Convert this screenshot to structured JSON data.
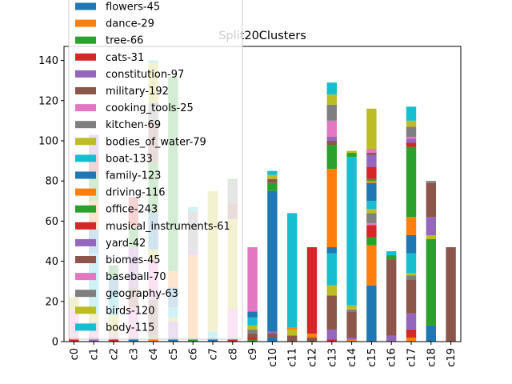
{
  "chart_data": {
    "type": "bar",
    "stacked": true,
    "title": "Split20Clusters",
    "xlabel": "",
    "ylabel": "",
    "ylim": [
      0,
      147
    ],
    "yticks": [
      0,
      20,
      40,
      60,
      80,
      100,
      120,
      140
    ],
    "grid": false,
    "legend_position": "top-left",
    "categories": [
      "c0",
      "c1",
      "c2",
      "c3",
      "c4",
      "c5",
      "c6",
      "c7",
      "c8",
      "c9",
      "c10",
      "c11",
      "c12",
      "c13",
      "c14",
      "c15",
      "c16",
      "c17",
      "c18",
      "c19"
    ],
    "series": [
      {
        "name": "flowers-45",
        "color": "#1f77b4",
        "values": [
          0,
          0,
          0,
          2,
          0,
          2,
          0,
          2,
          0,
          0,
          2,
          0,
          0,
          0,
          0,
          28,
          0,
          0,
          8,
          0
        ]
      },
      {
        "name": "dance-29",
        "color": "#ff7f0e",
        "values": [
          0,
          0,
          0,
          0,
          2,
          0,
          41,
          0,
          0,
          0,
          0,
          0,
          2,
          0,
          1,
          20,
          0,
          2,
          0,
          0
        ]
      },
      {
        "name": "tree-66",
        "color": "#2ca02c",
        "values": [
          0,
          0,
          0,
          0,
          1,
          0,
          1,
          0,
          0,
          2,
          0,
          0,
          0,
          0,
          0,
          4,
          0,
          0,
          43,
          0
        ]
      },
      {
        "name": "cats-31",
        "color": "#d62728",
        "values": [
          2,
          0,
          1,
          0,
          0,
          0,
          0,
          0,
          1,
          1,
          0,
          0,
          0,
          1,
          0,
          6,
          0,
          4,
          0,
          0
        ]
      },
      {
        "name": "constitution-97",
        "color": "#9467bd",
        "values": [
          0,
          1,
          0,
          0,
          0,
          8,
          1,
          0,
          0,
          0,
          0,
          0,
          0,
          5,
          1,
          0,
          3,
          8,
          0,
          0
        ]
      },
      {
        "name": "military-192",
        "color": "#8c564b",
        "values": [
          0,
          0,
          0,
          0,
          18,
          0,
          0,
          0,
          0,
          2,
          2,
          3,
          2,
          17,
          13,
          0,
          38,
          17,
          0,
          47
        ]
      },
      {
        "name": "cooking_tools-25",
        "color": "#e377c2",
        "values": [
          14,
          0,
          0,
          15,
          20,
          0,
          0,
          0,
          0,
          0,
          0,
          0,
          0,
          0,
          0,
          1,
          0,
          0,
          0,
          0
        ]
      },
      {
        "name": "kitchen-69",
        "color": "#7f7f7f",
        "values": [
          0,
          0,
          0,
          0,
          0,
          0,
          0,
          0,
          0,
          2,
          0,
          0,
          0,
          0,
          0,
          0,
          0,
          1,
          0,
          0
        ]
      },
      {
        "name": "bodies_of_water-79",
        "color": "#bcbd22",
        "values": [
          0,
          0,
          0,
          0,
          0,
          0,
          0,
          0,
          0,
          0,
          0,
          0,
          0,
          0,
          0,
          0,
          0,
          1,
          1,
          0
        ]
      },
      {
        "name": "boat-133",
        "color": "#17becf",
        "values": [
          0,
          0,
          0,
          0,
          0,
          0,
          0,
          0,
          0,
          0,
          0,
          3,
          0,
          0,
          0,
          0,
          0,
          0,
          0,
          0
        ]
      },
      {
        "name": "family-123",
        "color": "#1f77b4",
        "values": [
          0,
          0,
          0,
          0,
          0,
          0,
          0,
          0,
          0,
          0,
          70,
          0,
          0,
          0,
          0,
          0,
          0,
          0,
          0,
          0
        ]
      },
      {
        "name": "driving-116",
        "color": "#ff7f0e",
        "values": [
          0,
          0,
          0,
          0,
          0,
          0,
          0,
          0,
          0,
          0,
          0,
          0,
          0,
          0,
          0,
          0,
          0,
          0,
          0,
          0
        ]
      },
      {
        "name": "office-243",
        "color": "#2ca02c",
        "values": [
          0,
          0,
          0,
          0,
          0,
          0,
          0,
          0,
          0,
          0,
          0,
          0,
          0,
          0,
          0,
          0,
          0,
          0,
          0,
          0
        ]
      },
      {
        "name": "musical_instruments-61",
        "color": "#d62728",
        "values": [
          0,
          0,
          0,
          0,
          0,
          0,
          0,
          0,
          0,
          0,
          0,
          0,
          43,
          0,
          0,
          0,
          0,
          0,
          0,
          0
        ]
      },
      {
        "name": "yard-42",
        "color": "#9467bd",
        "values": [
          0,
          0,
          0,
          0,
          0,
          0,
          0,
          0,
          0,
          0,
          0,
          0,
          0,
          0,
          0,
          0,
          0,
          0,
          0,
          0
        ]
      },
      {
        "name": "biomes-45",
        "color": "#8c564b",
        "values": [
          0,
          0,
          0,
          0,
          0,
          0,
          0,
          0,
          0,
          0,
          0,
          0,
          0,
          0,
          0,
          0,
          0,
          0,
          0,
          0
        ]
      },
      {
        "name": "baseball-70",
        "color": "#e377c2",
        "values": [
          0,
          0,
          0,
          0,
          0,
          0,
          0,
          0,
          0,
          32,
          0,
          0,
          0,
          0,
          0,
          0,
          0,
          0,
          0,
          0
        ]
      },
      {
        "name": "geography-63",
        "color": "#7f7f7f",
        "values": [
          0,
          0,
          0,
          0,
          0,
          0,
          0,
          0,
          0,
          0,
          0,
          0,
          0,
          0,
          0,
          0,
          0,
          0,
          0,
          0
        ]
      },
      {
        "name": "birds-120",
        "color": "#bcbd22",
        "values": [
          0,
          0,
          0,
          0,
          0,
          0,
          0,
          0,
          0,
          0,
          0,
          0,
          0,
          0,
          0,
          0,
          0,
          0,
          0,
          0
        ]
      },
      {
        "name": "body-115",
        "color": "#17becf",
        "values": [
          0,
          0,
          0,
          0,
          0,
          0,
          0,
          0,
          0,
          0,
          0,
          0,
          0,
          0,
          0,
          0,
          0,
          0,
          0,
          0
        ]
      }
    ],
    "bars": [
      [
        [
          2,
          "#d62728"
        ],
        [
          14,
          "#e377c2"
        ],
        [
          6,
          "#bcbd22"
        ]
      ],
      [
        [
          1,
          "#9467bd"
        ],
        [
          1,
          "#8c564b"
        ],
        [
          3,
          "#e377c2"
        ],
        [
          5,
          "#7f7f7f"
        ],
        [
          4,
          "#bcbd22"
        ],
        [
          30,
          "#17becf"
        ],
        [
          12,
          "#1f77b4"
        ],
        [
          14,
          "#ff7f0e"
        ],
        [
          14,
          "#2ca02c"
        ],
        [
          9,
          "#d62728"
        ],
        [
          10,
          "#9467bd"
        ]
      ],
      [
        [
          1,
          "#d62728"
        ],
        [
          1,
          "#ff7f0e"
        ],
        [
          2,
          "#e377c2"
        ],
        [
          9,
          "#bcbd22"
        ],
        [
          11,
          "#17becf"
        ],
        [
          8,
          "#1f77b4"
        ],
        [
          6,
          "#2ca02c"
        ]
      ],
      [
        [
          2,
          "#1f77b4"
        ],
        [
          15,
          "#e377c2"
        ],
        [
          10,
          "#8c564b"
        ],
        [
          20,
          "#9467bd"
        ],
        [
          10,
          "#2ca02c"
        ],
        [
          15,
          "#d62728"
        ]
      ],
      [
        [
          2,
          "#ff7f0e"
        ],
        [
          1,
          "#2ca02c"
        ],
        [
          18,
          "#8c564b"
        ],
        [
          20,
          "#e377c2"
        ],
        [
          5,
          "#bcbd22"
        ],
        [
          18,
          "#1f77b4"
        ],
        [
          25,
          "#2ca02c"
        ],
        [
          20,
          "#8c564b"
        ],
        [
          10,
          "#7f7f7f"
        ],
        [
          20,
          "#bcbd22"
        ],
        [
          1,
          "#17becf"
        ]
      ],
      [
        [
          2,
          "#1f77b4"
        ],
        [
          8,
          "#9467bd"
        ],
        [
          2,
          "#bcbd22"
        ],
        [
          5,
          "#17becf"
        ],
        [
          10,
          "#1f77b4"
        ],
        [
          8,
          "#ff7f0e"
        ],
        [
          97,
          "#2ca02c"
        ]
      ],
      [
        [
          1,
          "#2ca02c"
        ],
        [
          1,
          "#9467bd"
        ],
        [
          41,
          "#ff7f0e"
        ],
        [
          3,
          "#9467bd"
        ],
        [
          19,
          "#7f7f7f"
        ],
        [
          2,
          "#17becf"
        ]
      ],
      [
        [
          2,
          "#1f77b4"
        ],
        [
          3,
          "#17becf"
        ],
        [
          70,
          "#bcbd22"
        ]
      ],
      [
        [
          1,
          "#d62728"
        ],
        [
          1,
          "#17becf"
        ],
        [
          14,
          "#e377c2"
        ],
        [
          45,
          "#bcbd22"
        ],
        [
          8,
          "#8c564b"
        ],
        [
          11,
          "#7f7f7f"
        ],
        [
          1,
          "#2ca02c"
        ]
      ],
      [
        [
          1,
          "#2ca02c"
        ],
        [
          1,
          "#d62728"
        ],
        [
          2,
          "#8c564b"
        ],
        [
          2,
          "#7f7f7f"
        ],
        [
          2,
          "#bcbd22"
        ],
        [
          4,
          "#17becf"
        ],
        [
          3,
          "#1f77b4"
        ],
        [
          32,
          "#e377c2"
        ]
      ],
      [
        [
          2,
          "#1f77b4"
        ],
        [
          2,
          "#8c564b"
        ],
        [
          1,
          "#9467bd"
        ],
        [
          70,
          "#1f77b4"
        ],
        [
          4,
          "#2ca02c"
        ],
        [
          2,
          "#8c564b"
        ],
        [
          2,
          "#bcbd22"
        ],
        [
          2,
          "#17becf"
        ]
      ],
      [
        [
          3,
          "#8c564b"
        ],
        [
          3,
          "#bcbd22"
        ],
        [
          1,
          "#ff7f0e"
        ],
        [
          57,
          "#17becf"
        ]
      ],
      [
        [
          2,
          "#8c564b"
        ],
        [
          2,
          "#ff7f0e"
        ],
        [
          43,
          "#d62728"
        ]
      ],
      [
        [
          1,
          "#d62728"
        ],
        [
          5,
          "#9467bd"
        ],
        [
          17,
          "#8c564b"
        ],
        [
          5,
          "#bcbd22"
        ],
        [
          16,
          "#17becf"
        ],
        [
          3,
          "#1f77b4"
        ],
        [
          39,
          "#ff7f0e"
        ],
        [
          12,
          "#2ca02c"
        ],
        [
          2,
          "#8c564b"
        ],
        [
          2,
          "#9467bd"
        ],
        [
          8,
          "#e377c2"
        ],
        [
          8,
          "#7f7f7f"
        ],
        [
          5,
          "#bcbd22"
        ],
        [
          6,
          "#17becf"
        ]
      ],
      [
        [
          1,
          "#ff7f0e"
        ],
        [
          1,
          "#9467bd"
        ],
        [
          13,
          "#8c564b"
        ],
        [
          1,
          "#7f7f7f"
        ],
        [
          2,
          "#bcbd22"
        ],
        [
          74,
          "#17becf"
        ],
        [
          2,
          "#2ca02c"
        ],
        [
          1,
          "#bcbd22"
        ]
      ],
      [
        [
          28,
          "#1f77b4"
        ],
        [
          20,
          "#ff7f0e"
        ],
        [
          4,
          "#2ca02c"
        ],
        [
          6,
          "#d62728"
        ],
        [
          1,
          "#e377c2"
        ],
        [
          5,
          "#7f7f7f"
        ],
        [
          2,
          "#bcbd22"
        ],
        [
          4,
          "#17becf"
        ],
        [
          9,
          "#1f77b4"
        ],
        [
          1,
          "#ff7f0e"
        ],
        [
          1,
          "#2ca02c"
        ],
        [
          6,
          "#d62728"
        ],
        [
          6,
          "#9467bd"
        ],
        [
          1,
          "#8c564b"
        ],
        [
          2,
          "#e377c2"
        ],
        [
          20,
          "#bcbd22"
        ]
      ],
      [
        [
          3,
          "#9467bd"
        ],
        [
          38,
          "#8c564b"
        ],
        [
          2,
          "#2ca02c"
        ],
        [
          2,
          "#17becf"
        ]
      ],
      [
        [
          2,
          "#ff7f0e"
        ],
        [
          4,
          "#d62728"
        ],
        [
          8,
          "#9467bd"
        ],
        [
          17,
          "#8c564b"
        ],
        [
          2,
          "#7f7f7f"
        ],
        [
          1,
          "#bcbd22"
        ],
        [
          10,
          "#17becf"
        ],
        [
          9,
          "#1f77b4"
        ],
        [
          9,
          "#ff7f0e"
        ],
        [
          35,
          "#2ca02c"
        ],
        [
          2,
          "#d62728"
        ],
        [
          2,
          "#9467bd"
        ],
        [
          1,
          "#e377c2"
        ],
        [
          5,
          "#7f7f7f"
        ],
        [
          3,
          "#bcbd22"
        ],
        [
          7,
          "#17becf"
        ]
      ],
      [
        [
          8,
          "#1f77b4"
        ],
        [
          43,
          "#2ca02c"
        ],
        [
          2,
          "#bcbd22"
        ],
        [
          9,
          "#9467bd"
        ],
        [
          17,
          "#8c564b"
        ],
        [
          1,
          "#7f7f7f"
        ]
      ],
      [
        [
          47,
          "#8c564b"
        ]
      ]
    ]
  }
}
